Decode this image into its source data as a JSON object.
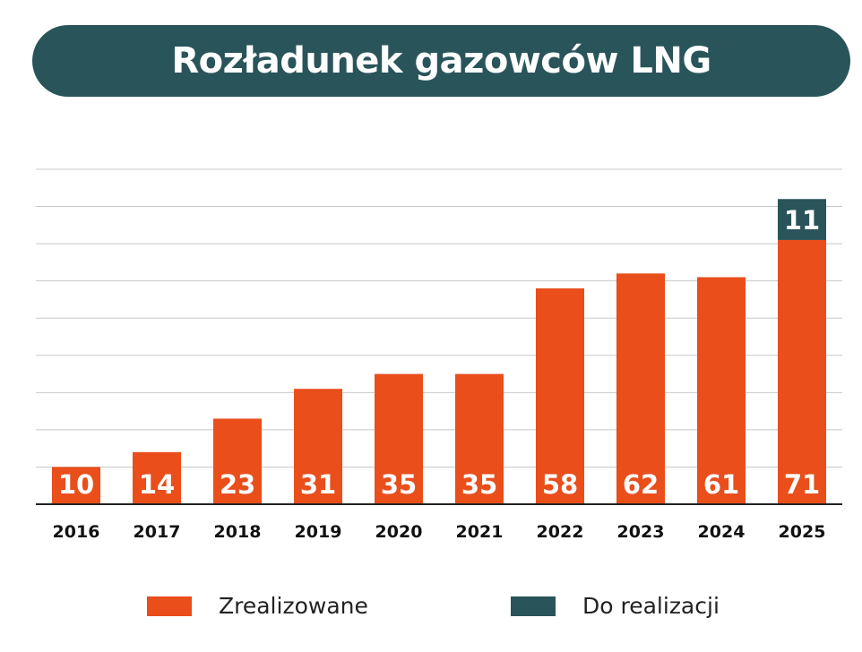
{
  "chart_data": {
    "type": "bar",
    "stacked": true,
    "title": "Rozładunek gazowców LNG",
    "categories": [
      "2016",
      "2017",
      "2018",
      "2019",
      "2020",
      "2021",
      "2022",
      "2023",
      "2024",
      "2025"
    ],
    "series": [
      {
        "name": "Zrealizowane",
        "color": "#e94e1b",
        "values": [
          10,
          14,
          23,
          31,
          35,
          35,
          58,
          62,
          61,
          71
        ]
      },
      {
        "name": "Do realizacji",
        "color": "#29545a",
        "values": [
          0,
          0,
          0,
          0,
          0,
          0,
          0,
          0,
          0,
          11
        ]
      }
    ],
    "xlabel": "",
    "ylabel": "",
    "ylim": [
      0,
      90
    ],
    "grid": true,
    "legend": "bottom"
  }
}
